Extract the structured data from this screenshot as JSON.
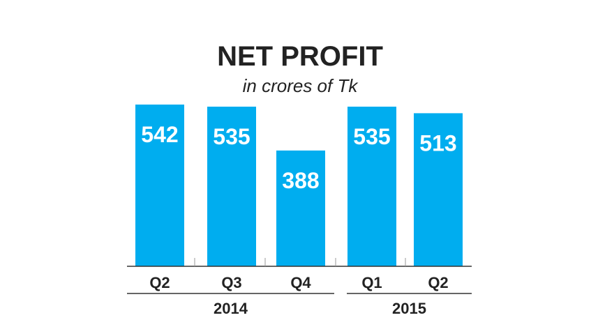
{
  "chart_data": {
    "type": "bar",
    "title": "NET PROFIT",
    "subtitle": "in crores of Tk",
    "categories": [
      "Q2",
      "Q3",
      "Q4",
      "Q1",
      "Q2"
    ],
    "groups": [
      {
        "label": "2014",
        "categories": [
          "Q2",
          "Q3",
          "Q4"
        ]
      },
      {
        "label": "2015",
        "categories": [
          "Q1",
          "Q2"
        ]
      }
    ],
    "values": [
      542,
      535,
      388,
      535,
      513
    ],
    "xlabel": "",
    "ylabel": "",
    "ylim": [
      0,
      542
    ],
    "grid": false,
    "legend": "none",
    "colors": {
      "bar": "#00adef",
      "bar_label": "#ffffff",
      "text": "#222222",
      "axis": "#333333",
      "divider": "#999999"
    }
  }
}
